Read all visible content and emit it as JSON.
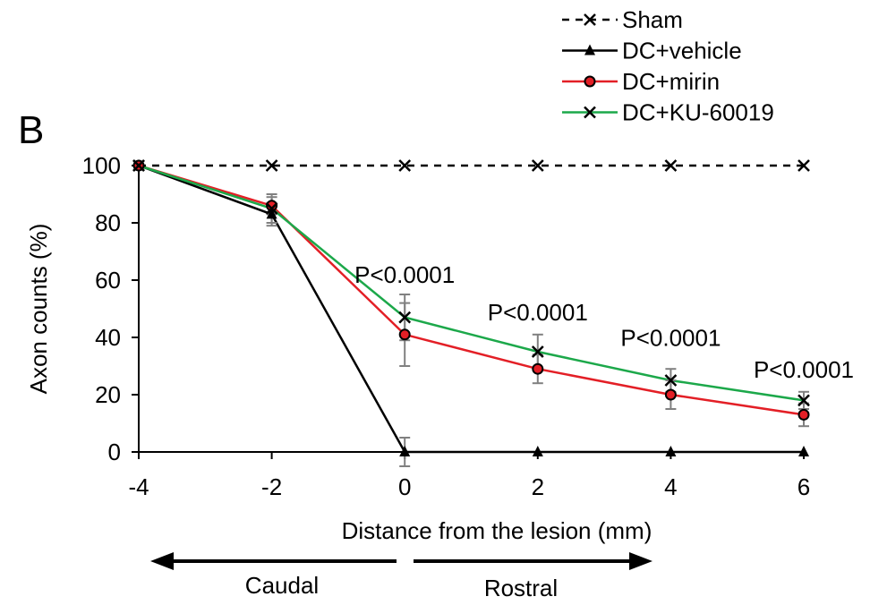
{
  "chart_data": {
    "type": "line",
    "panel_label": "B",
    "xlabel": "Distance from the lesion (mm)",
    "ylabel": "Axon counts (%)",
    "x": [
      -4,
      -2,
      0,
      2,
      4,
      6
    ],
    "xticks": [
      "-4",
      "-2",
      "0",
      "2",
      "4",
      "6"
    ],
    "yticks": [
      "0",
      "20",
      "40",
      "60",
      "80",
      "100"
    ],
    "xlim": [
      -4,
      6
    ],
    "ylim": [
      0,
      100
    ],
    "grid": false,
    "legend_position": "top-right",
    "series": [
      {
        "name": "Sham",
        "color": "#000000",
        "line_style": "dashed",
        "marker": "x",
        "values": [
          100,
          100,
          100,
          100,
          100,
          100
        ],
        "errors": [
          0,
          0,
          0,
          0,
          0,
          0
        ]
      },
      {
        "name": "DC+vehicle",
        "color": "#000000",
        "line_style": "solid",
        "marker": "triangle",
        "values": [
          100,
          83,
          0,
          0,
          0,
          0
        ],
        "errors": [
          0,
          4,
          5,
          0,
          0,
          0
        ]
      },
      {
        "name": "DC+mirin",
        "color": "#e31f26",
        "line_style": "solid",
        "marker": "circle",
        "values": [
          100,
          86,
          41,
          29,
          20,
          13
        ],
        "errors": [
          0,
          3,
          11,
          5,
          5,
          4
        ]
      },
      {
        "name": "DC+KU-60019",
        "color": "#1ca84a",
        "line_style": "solid",
        "marker": "x",
        "values": [
          100,
          85,
          47,
          35,
          25,
          18
        ],
        "errors": [
          0,
          5,
          8,
          6,
          4,
          3
        ]
      }
    ],
    "annotations": [
      {
        "text": "P<0.0001",
        "x": 0,
        "y": 59
      },
      {
        "text": "P<0.0001",
        "x": 2,
        "y": 46
      },
      {
        "text": "P<0.0001",
        "x": 4,
        "y": 37
      },
      {
        "text": "P<0.0001",
        "x": 6,
        "y": 26
      }
    ],
    "direction_labels": {
      "left": "Caudal",
      "right": "Rostral"
    },
    "error_bar_color": "#808080"
  }
}
